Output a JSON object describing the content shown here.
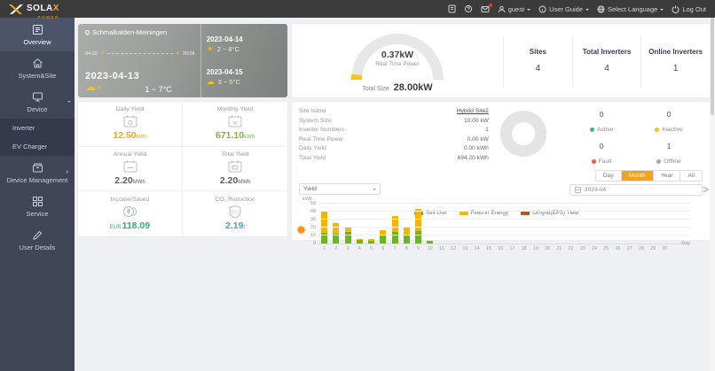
{
  "brand": {
    "name": "SOLA",
    "x": "X",
    "sub": "POWER"
  },
  "header": {
    "user": "guest",
    "user_guide": "User Guide",
    "select_language": "Select Language",
    "logout": "Log Out"
  },
  "sidebar": {
    "items": [
      {
        "label": "Overview"
      },
      {
        "label": "System&Site"
      },
      {
        "label": "Device"
      },
      {
        "label": "Device Management"
      },
      {
        "label": "Service"
      },
      {
        "label": "User Details"
      }
    ],
    "device_submenu": [
      {
        "label": "Inverter"
      },
      {
        "label": "EV Charger"
      }
    ]
  },
  "weather": {
    "location": "Schmalkalden-Meiningen",
    "sunrise": "04:30",
    "sunset": "20:04",
    "today": {
      "date": "2023-04-13",
      "temp": "1 ~ 7°C"
    },
    "forecast": [
      {
        "date": "2023-04-14",
        "temp": "2 ~ 8°C"
      },
      {
        "date": "2023-04-15",
        "temp": "3 ~ 5°C"
      }
    ]
  },
  "overview": {
    "power_value": "0.37kW",
    "power_label": "Real Time Power",
    "total_size_label": "Total Size",
    "total_size_value": "28.00kW",
    "stats": [
      {
        "label": "Sites",
        "value": "4"
      },
      {
        "label": "Total Inverters",
        "value": "4"
      },
      {
        "label": "Online Inverters",
        "value": "1"
      }
    ]
  },
  "yields": [
    {
      "label": "Daily Yield",
      "prefix": "",
      "value": "12.50",
      "unit": "kWh",
      "color": "#f0a818"
    },
    {
      "label": "Monthly Yield",
      "prefix": "",
      "value": "671.10",
      "unit": "kWh",
      "color": "#7cb342"
    },
    {
      "label": "Annual Yield",
      "prefix": "",
      "value": "2.20",
      "unit": "MWh",
      "color": "#5a5a5a"
    },
    {
      "label": "Total Yield",
      "prefix": "",
      "value": "2.20",
      "unit": "MWh",
      "color": "#5a5a5a"
    },
    {
      "label": "Income/Saved",
      "prefix": "EUR",
      "value": "118.09",
      "unit": "",
      "color": "#2fae7d"
    },
    {
      "label": "CO₂ Reduction",
      "prefix": "",
      "value": "2.19",
      "unit": "t",
      "color": "#4aa3b5"
    }
  ],
  "site": {
    "info": [
      {
        "label": "Site Name",
        "value": "Hybrid Site2"
      },
      {
        "label": "System Size",
        "value": "10.00 kW"
      },
      {
        "label": "Inverter Numbers",
        "value": "1"
      },
      {
        "label": "Real Time Power",
        "value": "0.00 kW"
      },
      {
        "label": "Daily Yield",
        "value": "0.00 kWh"
      },
      {
        "label": "Total Yield",
        "value": "694.20 kWh"
      }
    ],
    "status": [
      {
        "count": "0",
        "label": "Active",
        "color": "#35c26d"
      },
      {
        "count": "0",
        "label": "Inactive",
        "color": "#f6c21c"
      },
      {
        "count": "0",
        "label": "Fault",
        "color": "#f05a50"
      },
      {
        "count": "1",
        "label": "Offline",
        "color": "#a8a8a8"
      }
    ],
    "tabs": [
      "Day",
      "Month",
      "Year",
      "All"
    ],
    "active_tab": "Month",
    "date": "2023-04",
    "metric": "Yield"
  },
  "chart_data": {
    "type": "bar",
    "stacked": true,
    "categories": [
      "1",
      "2",
      "3",
      "4",
      "5",
      "6",
      "7",
      "8",
      "9",
      "10",
      "11",
      "12",
      "13",
      "14",
      "15",
      "16",
      "17",
      "18",
      "19",
      "20",
      "21",
      "22",
      "23",
      "24",
      "25",
      "26",
      "27",
      "28",
      "29",
      "30"
    ],
    "series": [
      {
        "name": "Self-Use",
        "color": "#6fb32c",
        "values": [
          13,
          12,
          14,
          4,
          3.5,
          11,
          15,
          11,
          16,
          3,
          0,
          0,
          0,
          0,
          0,
          0,
          0,
          0,
          0,
          0,
          0,
          0,
          0,
          0,
          0,
          0,
          0,
          0,
          0,
          0
        ]
      },
      {
        "name": "Feed-in Energy",
        "color": "#f8b500",
        "values": [
          28,
          14,
          6,
          2,
          2,
          6,
          20,
          10,
          27,
          0.5,
          0,
          0,
          0,
          0,
          0,
          0,
          0,
          0,
          0,
          0,
          0,
          0,
          0,
          0,
          0,
          0,
          0,
          0,
          0,
          0
        ]
      },
      {
        "name": "Off-grid(EPS) Yield",
        "color": "#b4561f",
        "values": [
          0,
          0,
          0,
          0,
          0,
          0,
          0,
          0,
          0,
          0,
          0,
          0,
          0,
          0,
          0,
          0,
          0,
          0,
          0,
          0,
          0,
          0,
          0,
          0,
          0,
          0,
          0,
          0,
          0,
          0
        ]
      }
    ],
    "ylabel": "kWh",
    "xlabel": "Day",
    "ylim": [
      0,
      50
    ],
    "yticks": [
      0,
      10,
      20,
      30,
      40,
      50
    ],
    "grid": true,
    "legend_position": "bottom"
  }
}
